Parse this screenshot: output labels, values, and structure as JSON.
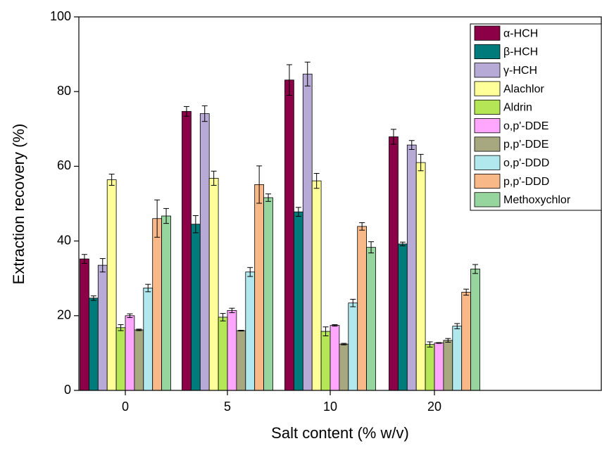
{
  "chart_data": {
    "type": "bar",
    "x_label": "Salt content (% w/v)",
    "y_label": "Extraction recovery (%)",
    "categories": [
      "0",
      "5",
      "10",
      "20"
    ],
    "ylim": [
      0,
      100
    ],
    "yticks": [
      0,
      20,
      40,
      60,
      80,
      100
    ],
    "legend": "top-right",
    "series": [
      {
        "name": "α-HCH",
        "color": "#8b0046",
        "values": [
          35.2,
          74.7,
          83.1,
          67.9
        ],
        "errors": [
          1.2,
          1.3,
          4.1,
          2.0
        ]
      },
      {
        "name": "β-HCH",
        "color": "#007b7b",
        "values": [
          24.7,
          44.5,
          47.8,
          39.2
        ],
        "errors": [
          0.6,
          2.3,
          1.2,
          0.5
        ]
      },
      {
        "name": "γ-HCH",
        "color": "#b8aad6",
        "values": [
          33.5,
          74.1,
          84.7,
          65.7
        ],
        "errors": [
          1.8,
          2.1,
          3.2,
          1.2
        ]
      },
      {
        "name": "Alachlor",
        "color": "#ffff99",
        "values": [
          56.4,
          56.8,
          56.1,
          61.0
        ],
        "errors": [
          1.5,
          1.9,
          2.0,
          2.2
        ]
      },
      {
        "name": "Aldrin",
        "color": "#b5e655",
        "values": [
          16.8,
          19.6,
          15.8,
          12.3
        ],
        "errors": [
          0.8,
          1.0,
          1.2,
          0.7
        ]
      },
      {
        "name": "o,p'-DDE",
        "color": "#ffa6ff",
        "values": [
          20.0,
          21.4,
          17.4,
          12.7
        ],
        "errors": [
          0.5,
          0.6,
          0.2,
          0.1
        ]
      },
      {
        "name": "p,p'-DDE",
        "color": "#a8a880",
        "values": [
          16.2,
          16.0,
          12.4,
          13.4
        ],
        "errors": [
          0.2,
          0.1,
          0.2,
          0.5
        ]
      },
      {
        "name": "o,p'-DDD",
        "color": "#b0e8ee",
        "values": [
          27.4,
          31.7,
          23.4,
          17.2
        ],
        "errors": [
          1.0,
          1.2,
          1.0,
          0.7
        ]
      },
      {
        "name": "p,p'-DDD",
        "color": "#f8b888",
        "values": [
          46.0,
          55.1,
          43.9,
          26.3
        ],
        "errors": [
          5.0,
          5.0,
          1.0,
          0.8
        ]
      },
      {
        "name": "Methoxychlor",
        "color": "#96d69e",
        "values": [
          46.7,
          51.6,
          38.3,
          32.5
        ],
        "errors": [
          2.0,
          1.0,
          1.5,
          1.2
        ]
      }
    ]
  }
}
